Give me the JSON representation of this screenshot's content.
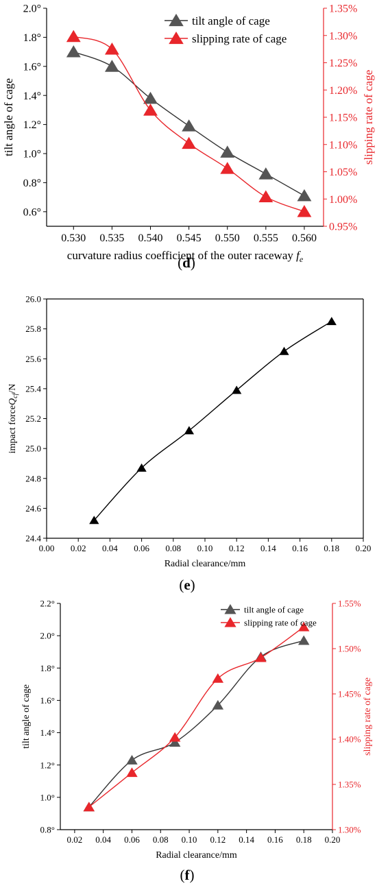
{
  "colors": {
    "black_series": "#555555",
    "red_series": "#e8262b",
    "line_black": "#000000"
  },
  "chart_data": [
    {
      "type": "line",
      "panel": "d",
      "xlabel": "curvature radius coefficient of the outer raceway",
      "xlabel_symbol": "f",
      "xlabel_sub": "e",
      "ylabel": "tilt angle of cage",
      "y2label": "slipping rate of cage",
      "xlim": [
        0.5265,
        0.5625
      ],
      "ylim": [
        0.5,
        2.0
      ],
      "y2lim": [
        0.95,
        1.35
      ],
      "xticks": [
        "0.530",
        "0.535",
        "0.540",
        "0.545",
        "0.550",
        "0.555",
        "0.560"
      ],
      "xtick_values": [
        0.53,
        0.535,
        0.54,
        0.545,
        0.55,
        0.555,
        0.56
      ],
      "yticks": [
        "0.6°",
        "0.8°",
        "1.0°",
        "1.2°",
        "1.4°",
        "1.6°",
        "1.8°",
        "2.0°"
      ],
      "ytick_values": [
        0.6,
        0.8,
        1.0,
        1.2,
        1.4,
        1.6,
        1.8,
        2.0
      ],
      "y2ticks": [
        "0.95%",
        "1.00%",
        "1.05%",
        "1.10%",
        "1.15%",
        "1.20%",
        "1.25%",
        "1.30%",
        "1.35%"
      ],
      "y2tick_values": [
        0.95,
        1.0,
        1.05,
        1.1,
        1.15,
        1.2,
        1.25,
        1.3,
        1.35
      ],
      "legend_position": "top-right",
      "series": [
        {
          "name": "tilt angle of cage",
          "axis": "left",
          "color": "#555555",
          "x": [
            0.53,
            0.535,
            0.54,
            0.545,
            0.55,
            0.555,
            0.56
          ],
          "values": [
            1.7,
            1.6,
            1.38,
            1.19,
            1.01,
            0.86,
            0.71
          ]
        },
        {
          "name": "slipping rate of cage",
          "axis": "right",
          "color": "#e8262b",
          "x": [
            0.53,
            0.535,
            0.54,
            0.545,
            0.55,
            0.555,
            0.56
          ],
          "values": [
            1.298,
            1.275,
            1.163,
            1.102,
            1.056,
            1.004,
            0.977
          ]
        }
      ]
    },
    {
      "type": "line",
      "panel": "e",
      "xlabel": "Radial clearance/mm",
      "ylabel": "impact force",
      "ylabel_symbol": "Q",
      "ylabel_sub": "cf",
      "ylabel_unit": "/N",
      "xlim": [
        0.0,
        0.2
      ],
      "ylim": [
        24.4,
        26.0
      ],
      "xticks": [
        "0.00",
        "0.02",
        "0.04",
        "0.06",
        "0.08",
        "0.10",
        "0.12",
        "0.14",
        "0.16",
        "0.18",
        "0.20"
      ],
      "xtick_values": [
        0.0,
        0.02,
        0.04,
        0.06,
        0.08,
        0.1,
        0.12,
        0.14,
        0.16,
        0.18,
        0.2
      ],
      "yticks": [
        "24.4",
        "24.6",
        "24.8",
        "25.0",
        "25.2",
        "25.4",
        "25.6",
        "25.8",
        "26.0"
      ],
      "ytick_values": [
        24.4,
        24.6,
        24.8,
        25.0,
        25.2,
        25.4,
        25.6,
        25.8,
        26.0
      ],
      "series": [
        {
          "axis": "left",
          "color": "#000000",
          "x": [
            0.03,
            0.06,
            0.09,
            0.12,
            0.15,
            0.18
          ],
          "values": [
            24.52,
            24.87,
            25.12,
            25.39,
            25.65,
            25.85
          ]
        }
      ]
    },
    {
      "type": "line",
      "panel": "f",
      "xlabel": "Radial clearance/mm",
      "ylabel": "tilt angle of cage",
      "y2label": "slipping rate of cage",
      "xlim": [
        0.01,
        0.2
      ],
      "ylim": [
        0.8,
        2.2
      ],
      "y2lim": [
        1.3,
        1.55
      ],
      "xticks": [
        "0.02",
        "0.04",
        "0.06",
        "0.08",
        "0.10",
        "0.12",
        "0.14",
        "0.16",
        "0.18",
        "0.20"
      ],
      "xtick_values": [
        0.02,
        0.04,
        0.06,
        0.08,
        0.1,
        0.12,
        0.14,
        0.16,
        0.18,
        0.2
      ],
      "yticks": [
        "0.8°",
        "1.0°",
        "1.2°",
        "1.4°",
        "1.6°",
        "1.8°",
        "2.0°",
        "2.2°"
      ],
      "ytick_values": [
        0.8,
        1.0,
        1.2,
        1.4,
        1.6,
        1.8,
        2.0,
        2.2
      ],
      "y2ticks": [
        "1.30%",
        "1.35%",
        "1.40%",
        "1.45%",
        "1.50%",
        "1.55%"
      ],
      "y2tick_values": [
        1.3,
        1.35,
        1.4,
        1.45,
        1.5,
        1.55
      ],
      "legend_position": "top-right",
      "series": [
        {
          "name": "tilt angle of cage",
          "axis": "left",
          "color": "#555555",
          "x": [
            0.03,
            0.06,
            0.09,
            0.12,
            0.15,
            0.18
          ],
          "values": [
            0.94,
            1.23,
            1.34,
            1.57,
            1.87,
            1.97
          ]
        },
        {
          "name": "slipping rate of cage",
          "axis": "right",
          "color": "#e8262b",
          "x": [
            0.03,
            0.06,
            0.09,
            0.12,
            0.15,
            0.18
          ],
          "values": [
            1.325,
            1.363,
            1.402,
            1.467,
            1.49,
            1.524
          ]
        }
      ]
    }
  ],
  "captions": {
    "d": "d",
    "e": "e",
    "f": "f"
  }
}
